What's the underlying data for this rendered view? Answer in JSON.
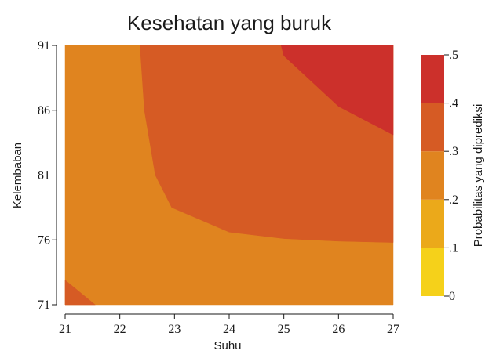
{
  "chart_data": {
    "type": "heatmap",
    "subtype": "contour",
    "title": "Kesehatan yang buruk",
    "xlabel": "Suhu",
    "ylabel": "Kelembaban",
    "xlim": [
      21,
      27
    ],
    "ylim": [
      71,
      91
    ],
    "xticks": [
      21,
      22,
      23,
      24,
      25,
      26,
      27
    ],
    "yticks": [
      71,
      76,
      81,
      86,
      91
    ],
    "colorbar": {
      "label": "Probabilitas yang diprediksi",
      "ticks": [
        0,
        0.1,
        0.2,
        0.3,
        0.4,
        0.5
      ],
      "tick_labels": [
        "0",
        ".1",
        ".2",
        ".3",
        ".4",
        ".5"
      ],
      "bands": [
        {
          "from": 0.0,
          "to": 0.1,
          "color": "#f5d11a"
        },
        {
          "from": 0.1,
          "to": 0.2,
          "color": "#eba91a"
        },
        {
          "from": 0.2,
          "to": 0.3,
          "color": "#e0841f"
        },
        {
          "from": 0.3,
          "to": 0.4,
          "color": "#d65b24"
        },
        {
          "from": 0.4,
          "to": 0.5,
          "color": "#cc302b"
        }
      ]
    },
    "regions": [
      {
        "band": "0.2-0.3",
        "color": "#e0841f",
        "polygon": [
          [
            21,
            71
          ],
          [
            27,
            71
          ],
          [
            27,
            91
          ],
          [
            21,
            91
          ]
        ]
      },
      {
        "band": "0.3-0.4",
        "color": "#d65b24",
        "polygon": [
          [
            22.37,
            91
          ],
          [
            22.45,
            86
          ],
          [
            22.65,
            81
          ],
          [
            22.95,
            78.5
          ],
          [
            24,
            76.6
          ],
          [
            25,
            76.1
          ],
          [
            26,
            75.9
          ],
          [
            27,
            75.8
          ],
          [
            27,
            91
          ]
        ]
      },
      {
        "band": "0.3-0.4",
        "color": "#d65b24",
        "polygon": [
          [
            21,
            71
          ],
          [
            21,
            72.9
          ],
          [
            21.55,
            71
          ]
        ]
      },
      {
        "band": "0.4-0.5",
        "color": "#cc302b",
        "polygon": [
          [
            24.95,
            91
          ],
          [
            25,
            90.2
          ],
          [
            26,
            86.3
          ],
          [
            27,
            84.1
          ],
          [
            27,
            91
          ]
        ]
      }
    ]
  }
}
